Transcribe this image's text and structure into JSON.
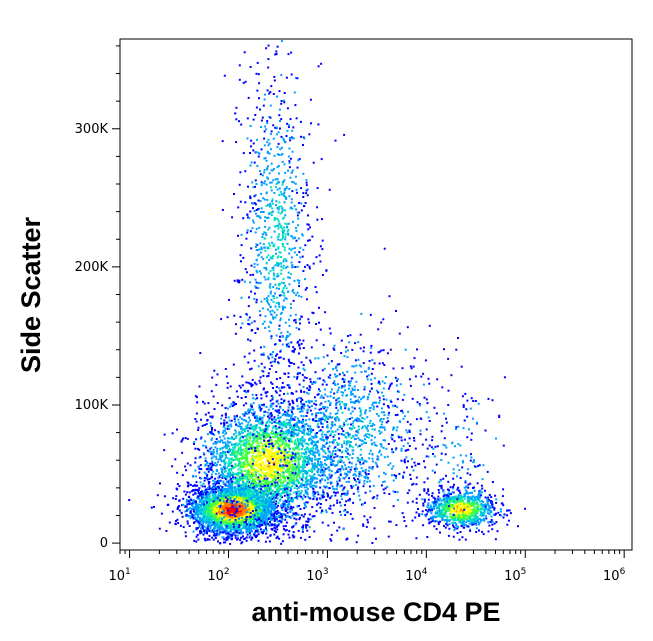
{
  "chart_data": {
    "type": "scatter",
    "title": "",
    "xlabel": "anti-mouse CD4 PE",
    "ylabel": "Side Scatter",
    "x_scale": "log",
    "xlim": [
      8,
      1200000
    ],
    "ylim": [
      -5000,
      365000
    ],
    "x_ticks": [
      {
        "value": 10,
        "base": "10",
        "exp": "1"
      },
      {
        "value": 100,
        "base": "10",
        "exp": "2"
      },
      {
        "value": 1000,
        "base": "10",
        "exp": "3"
      },
      {
        "value": 10000,
        "base": "10",
        "exp": "4"
      },
      {
        "value": 100000,
        "base": "10",
        "exp": "5"
      },
      {
        "value": 1000000,
        "base": "10",
        "exp": "6"
      }
    ],
    "y_ticks": [
      {
        "value": 0,
        "label": "0"
      },
      {
        "value": 100000,
        "label": "100K"
      },
      {
        "value": 200000,
        "label": "200K"
      },
      {
        "value": 300000,
        "label": "300K"
      }
    ],
    "colormap": [
      "#0000ff",
      "#00a0ff",
      "#00e0c0",
      "#40ff40",
      "#ffff00",
      "#ff8000",
      "#ff0000"
    ],
    "populations": [
      {
        "name": "",
        "x_center": 110,
        "y_center": 25000,
        "count": 3200,
        "intensity": 1.0
      },
      {
        "name": "",
        "x_center": 250,
        "y_center": 60000,
        "count": 2800,
        "intensity": 0.7
      },
      {
        "name": "",
        "x_center": 300,
        "y_center": 220000,
        "count": 900,
        "intensity": 0.3
      },
      {
        "name": "",
        "x_center": 1500,
        "y_center": 80000,
        "count": 1200,
        "intensity": 0.25
      },
      {
        "name": "",
        "x_center": 22000,
        "y_center": 25000,
        "count": 900,
        "intensity": 0.75
      },
      {
        "name": "",
        "x_center": 20000,
        "y_center": 60000,
        "count": 120,
        "intensity": 0.15
      }
    ],
    "grid": false,
    "legend": "none"
  }
}
